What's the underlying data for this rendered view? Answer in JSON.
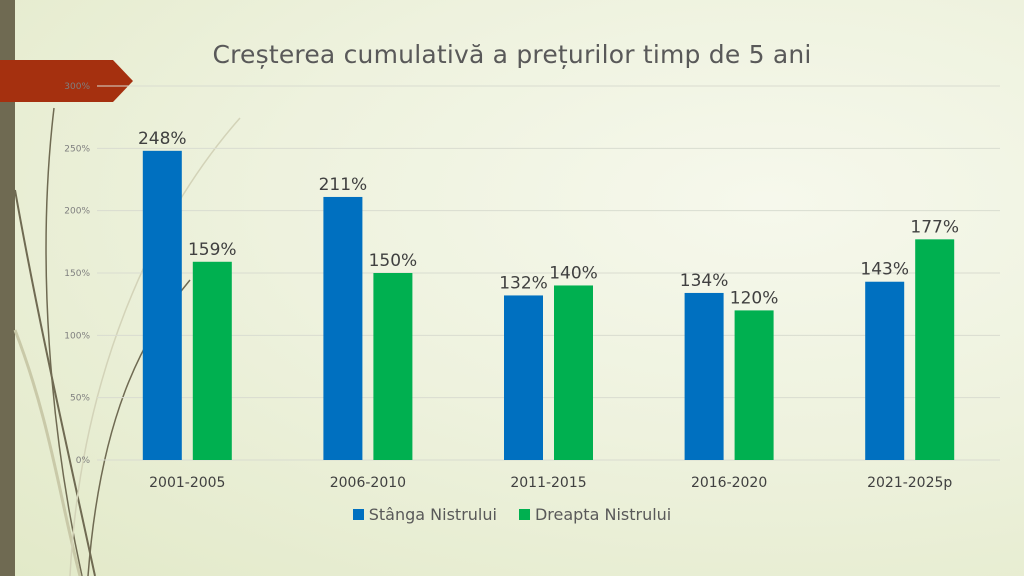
{
  "chart_data": {
    "type": "bar",
    "title": "Creșterea cumulativă a prețurilor timp de 5 ani",
    "categories": [
      "2001-2005",
      "2006-2010",
      "2011-2015",
      "2016-2020",
      "2021-2025p"
    ],
    "series": [
      {
        "name": "Stânga Nistrului",
        "values": [
          248,
          211,
          132,
          134,
          143
        ],
        "labels": [
          "248%",
          "211%",
          "132%",
          "134%",
          "143%"
        ],
        "color": "#0070c0"
      },
      {
        "name": "Dreapta Nistrului",
        "values": [
          159,
          150,
          140,
          120,
          177
        ],
        "labels": [
          "159%",
          "150%",
          "140%",
          "120%",
          "177%"
        ],
        "color": "#00b050"
      }
    ],
    "yticks": [
      0,
      50,
      100,
      150,
      200,
      250,
      300
    ],
    "ytick_labels": [
      "0%",
      "50%",
      "100%",
      "150%",
      "200%",
      "250%",
      "300%"
    ],
    "ylim": [
      0,
      300
    ],
    "xlabel": "",
    "ylabel": "",
    "grid": true,
    "legend": "bottom"
  }
}
